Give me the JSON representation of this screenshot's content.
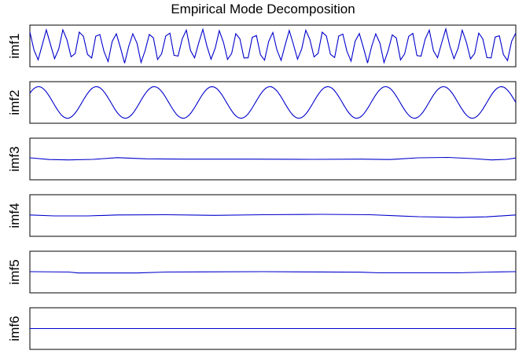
{
  "title": "Empirical Mode Decomposition",
  "colors": {
    "line": "#0000cc",
    "frame": "#000000",
    "background": "#ffffff"
  },
  "chart_data": {
    "type": "line",
    "title": "Empirical Mode Decomposition",
    "grid": false,
    "x": {
      "min": 0,
      "max": 1,
      "ticks": "none"
    },
    "series": [
      {
        "name": "imf1",
        "ylabel": "imf1",
        "ylim": [
          -1,
          1
        ],
        "kind": "sine",
        "cycles": 28,
        "amplitude": 0.9,
        "phase": 0.3,
        "jagged": true
      },
      {
        "name": "imf2",
        "ylabel": "imf2",
        "ylim": [
          -1,
          1
        ],
        "kind": "sine",
        "cycles": 8.4,
        "amplitude": 0.82,
        "phase": 0.1,
        "jagged": false
      },
      {
        "name": "imf3",
        "ylabel": "imf3",
        "ylim": [
          -1,
          1
        ],
        "kind": "points",
        "points": [
          [
            0,
            0.06
          ],
          [
            0.04,
            -0.03
          ],
          [
            0.08,
            -0.05
          ],
          [
            0.13,
            -0.02
          ],
          [
            0.18,
            0.07
          ],
          [
            0.24,
            0.01
          ],
          [
            0.32,
            -0.01
          ],
          [
            0.45,
            -0.01
          ],
          [
            0.58,
            -0.02
          ],
          [
            0.68,
            -0.01
          ],
          [
            0.74,
            -0.03
          ],
          [
            0.8,
            0.06
          ],
          [
            0.86,
            0.08
          ],
          [
            0.91,
            0.02
          ],
          [
            0.95,
            -0.05
          ],
          [
            0.98,
            -0.02
          ],
          [
            1,
            0.05
          ]
        ]
      },
      {
        "name": "imf4",
        "ylabel": "imf4",
        "ylim": [
          -1,
          1
        ],
        "kind": "points",
        "points": [
          [
            0,
            0.03
          ],
          [
            0.05,
            -0.02
          ],
          [
            0.12,
            -0.02
          ],
          [
            0.18,
            0.03
          ],
          [
            0.28,
            0.04
          ],
          [
            0.38,
            0.01
          ],
          [
            0.48,
            0.04
          ],
          [
            0.6,
            0.06
          ],
          [
            0.7,
            0.04
          ],
          [
            0.8,
            -0.06
          ],
          [
            0.88,
            -0.1
          ],
          [
            0.94,
            -0.07
          ],
          [
            1,
            0.03
          ]
        ]
      },
      {
        "name": "imf5",
        "ylabel": "imf5",
        "ylim": [
          -1,
          1
        ],
        "kind": "points",
        "points": [
          [
            0,
            0.02
          ],
          [
            0.08,
            0
          ],
          [
            0.1,
            -0.05
          ],
          [
            0.22,
            -0.05
          ],
          [
            0.28,
            0
          ],
          [
            0.48,
            0.02
          ],
          [
            0.68,
            -0.01
          ],
          [
            0.72,
            -0.04
          ],
          [
            0.88,
            -0.04
          ],
          [
            0.95,
            0
          ],
          [
            1,
            0.02
          ]
        ]
      },
      {
        "name": "imf6",
        "ylabel": "imf6",
        "ylim": [
          -1,
          1
        ],
        "kind": "points",
        "points": [
          [
            0,
            0
          ],
          [
            1,
            0
          ]
        ]
      }
    ]
  }
}
